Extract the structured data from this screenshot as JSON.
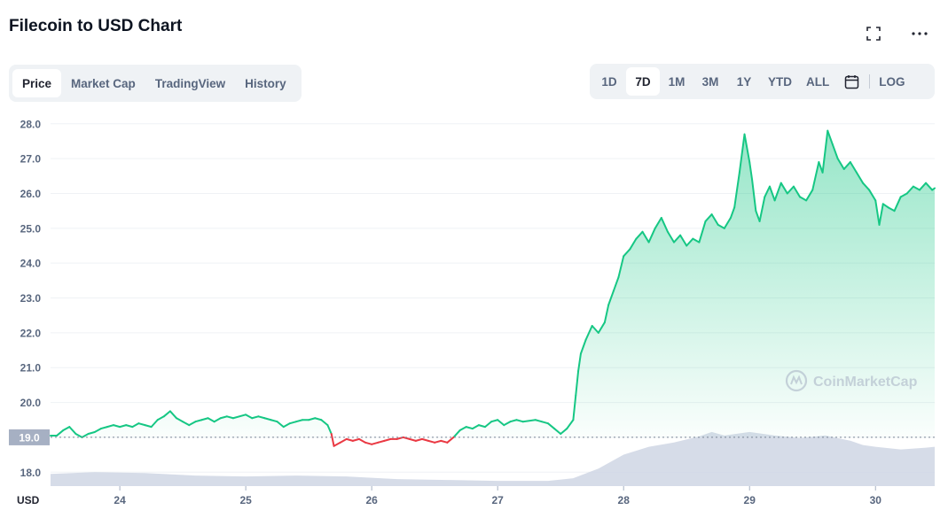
{
  "header": {
    "title": "Filecoin to USD Chart",
    "fullscreen_icon": "fullscreen-icon",
    "more_icon": "more-options-icon"
  },
  "view_tabs": [
    {
      "label": "Price",
      "active": true
    },
    {
      "label": "Market Cap",
      "active": false
    },
    {
      "label": "TradingView",
      "active": false
    },
    {
      "label": "History",
      "active": false
    }
  ],
  "range_tabs": [
    {
      "label": "1D",
      "active": false
    },
    {
      "label": "7D",
      "active": true
    },
    {
      "label": "1M",
      "active": false
    },
    {
      "label": "3M",
      "active": false
    },
    {
      "label": "1Y",
      "active": false
    },
    {
      "label": "YTD",
      "active": false
    },
    {
      "label": "ALL",
      "active": false
    }
  ],
  "calendar_icon": "calendar-icon",
  "log_label": "LOG",
  "colors": {
    "up": "#16c784",
    "down": "#ea3943",
    "volume": "#cfd6e4",
    "grid": "#eff2f5",
    "axis_text": "#58667e",
    "baseline_badge": "#a6b0c3"
  },
  "chart_data": {
    "type": "line",
    "currency_label": "USD",
    "watermark": "CoinMarketCap",
    "y_ticks": [
      18.0,
      19.0,
      20.0,
      21.0,
      22.0,
      23.0,
      24.0,
      25.0,
      26.0,
      27.0,
      28.0
    ],
    "ylim": [
      17.6,
      28.3
    ],
    "x_ticks": [
      "24",
      "25",
      "26",
      "27",
      "28",
      "29",
      "30"
    ],
    "x_tick_values": [
      24,
      25,
      26,
      27,
      28,
      29,
      30
    ],
    "xlim": [
      23.45,
      30.47
    ],
    "baseline": 19.0,
    "series": [
      {
        "values": [
          [
            23.45,
            19.05
          ],
          [
            23.5,
            19.05
          ],
          [
            23.55,
            19.2
          ],
          [
            23.6,
            19.3
          ],
          [
            23.65,
            19.1
          ],
          [
            23.7,
            19.0
          ],
          [
            23.75,
            19.1
          ],
          [
            23.8,
            19.15
          ],
          [
            23.85,
            19.25
          ],
          [
            23.9,
            19.3
          ],
          [
            23.95,
            19.35
          ],
          [
            24.0,
            19.3
          ],
          [
            24.05,
            19.35
          ],
          [
            24.1,
            19.3
          ],
          [
            24.15,
            19.4
          ],
          [
            24.2,
            19.35
          ],
          [
            24.25,
            19.3
          ],
          [
            24.3,
            19.5
          ],
          [
            24.35,
            19.6
          ],
          [
            24.4,
            19.75
          ],
          [
            24.45,
            19.55
          ],
          [
            24.5,
            19.45
          ],
          [
            24.55,
            19.35
          ],
          [
            24.6,
            19.45
          ],
          [
            24.65,
            19.5
          ],
          [
            24.7,
            19.55
          ],
          [
            24.75,
            19.45
          ],
          [
            24.8,
            19.55
          ],
          [
            24.85,
            19.6
          ],
          [
            24.9,
            19.55
          ],
          [
            25.0,
            19.65
          ],
          [
            25.05,
            19.55
          ],
          [
            25.1,
            19.6
          ],
          [
            25.15,
            19.55
          ],
          [
            25.2,
            19.5
          ],
          [
            25.25,
            19.45
          ],
          [
            25.3,
            19.3
          ],
          [
            25.35,
            19.4
          ],
          [
            25.4,
            19.45
          ],
          [
            25.45,
            19.5
          ],
          [
            25.5,
            19.5
          ],
          [
            25.55,
            19.55
          ],
          [
            25.6,
            19.5
          ],
          [
            25.65,
            19.35
          ],
          [
            25.68,
            19.1
          ],
          [
            25.7,
            18.75
          ],
          [
            25.75,
            18.85
          ],
          [
            25.8,
            18.95
          ],
          [
            25.85,
            18.9
          ],
          [
            25.9,
            18.95
          ],
          [
            25.95,
            18.85
          ],
          [
            26.0,
            18.8
          ],
          [
            26.05,
            18.85
          ],
          [
            26.1,
            18.9
          ],
          [
            26.15,
            18.95
          ],
          [
            26.2,
            18.95
          ],
          [
            26.25,
            19.0
          ],
          [
            26.3,
            18.95
          ],
          [
            26.35,
            18.9
          ],
          [
            26.4,
            18.95
          ],
          [
            26.45,
            18.9
          ],
          [
            26.5,
            18.85
          ],
          [
            26.55,
            18.9
          ],
          [
            26.6,
            18.85
          ],
          [
            26.65,
            19.0
          ],
          [
            26.7,
            19.2
          ],
          [
            26.75,
            19.3
          ],
          [
            26.8,
            19.25
          ],
          [
            26.85,
            19.35
          ],
          [
            26.9,
            19.3
          ],
          [
            26.95,
            19.45
          ],
          [
            27.0,
            19.5
          ],
          [
            27.05,
            19.35
          ],
          [
            27.1,
            19.45
          ],
          [
            27.15,
            19.5
          ],
          [
            27.2,
            19.45
          ],
          [
            27.3,
            19.5
          ],
          [
            27.35,
            19.45
          ],
          [
            27.4,
            19.4
          ],
          [
            27.45,
            19.25
          ],
          [
            27.5,
            19.1
          ],
          [
            27.55,
            19.25
          ],
          [
            27.6,
            19.5
          ],
          [
            27.62,
            20.2
          ],
          [
            27.64,
            20.9
          ],
          [
            27.66,
            21.4
          ],
          [
            27.7,
            21.8
          ],
          [
            27.75,
            22.2
          ],
          [
            27.8,
            22.0
          ],
          [
            27.85,
            22.3
          ],
          [
            27.88,
            22.8
          ],
          [
            27.92,
            23.2
          ],
          [
            27.96,
            23.6
          ],
          [
            28.0,
            24.2
          ],
          [
            28.05,
            24.4
          ],
          [
            28.1,
            24.7
          ],
          [
            28.15,
            24.9
          ],
          [
            28.2,
            24.6
          ],
          [
            28.25,
            25.0
          ],
          [
            28.3,
            25.3
          ],
          [
            28.35,
            24.9
          ],
          [
            28.4,
            24.6
          ],
          [
            28.45,
            24.8
          ],
          [
            28.5,
            24.5
          ],
          [
            28.55,
            24.7
          ],
          [
            28.6,
            24.6
          ],
          [
            28.65,
            25.2
          ],
          [
            28.7,
            25.4
          ],
          [
            28.75,
            25.1
          ],
          [
            28.8,
            25.0
          ],
          [
            28.85,
            25.3
          ],
          [
            28.88,
            25.6
          ],
          [
            28.92,
            26.6
          ],
          [
            28.96,
            27.7
          ],
          [
            29.0,
            26.9
          ],
          [
            29.02,
            26.4
          ],
          [
            29.05,
            25.5
          ],
          [
            29.08,
            25.2
          ],
          [
            29.12,
            25.9
          ],
          [
            29.16,
            26.2
          ],
          [
            29.2,
            25.8
          ],
          [
            29.25,
            26.3
          ],
          [
            29.3,
            26.0
          ],
          [
            29.35,
            26.2
          ],
          [
            29.4,
            25.9
          ],
          [
            29.45,
            25.8
          ],
          [
            29.5,
            26.1
          ],
          [
            29.55,
            26.9
          ],
          [
            29.58,
            26.6
          ],
          [
            29.62,
            27.8
          ],
          [
            29.66,
            27.4
          ],
          [
            29.7,
            27.0
          ],
          [
            29.75,
            26.7
          ],
          [
            29.8,
            26.9
          ],
          [
            29.85,
            26.6
          ],
          [
            29.9,
            26.3
          ],
          [
            29.95,
            26.1
          ],
          [
            30.0,
            25.8
          ],
          [
            30.03,
            25.1
          ],
          [
            30.06,
            25.7
          ],
          [
            30.1,
            25.6
          ],
          [
            30.15,
            25.5
          ],
          [
            30.2,
            25.9
          ],
          [
            30.25,
            26.0
          ],
          [
            30.3,
            26.2
          ],
          [
            30.35,
            26.1
          ],
          [
            30.4,
            26.3
          ],
          [
            30.45,
            26.1
          ],
          [
            30.47,
            26.15
          ]
        ]
      }
    ],
    "volume": [
      [
        23.45,
        0.14
      ],
      [
        23.8,
        0.16
      ],
      [
        24.2,
        0.15
      ],
      [
        24.6,
        0.12
      ],
      [
        25.0,
        0.11
      ],
      [
        25.4,
        0.12
      ],
      [
        25.8,
        0.11
      ],
      [
        26.2,
        0.08
      ],
      [
        26.6,
        0.07
      ],
      [
        27.0,
        0.06
      ],
      [
        27.4,
        0.06
      ],
      [
        27.6,
        0.09
      ],
      [
        27.8,
        0.2
      ],
      [
        28.0,
        0.36
      ],
      [
        28.2,
        0.45
      ],
      [
        28.4,
        0.5
      ],
      [
        28.6,
        0.57
      ],
      [
        28.7,
        0.62
      ],
      [
        28.8,
        0.58
      ],
      [
        28.9,
        0.6
      ],
      [
        29.0,
        0.62
      ],
      [
        29.2,
        0.58
      ],
      [
        29.4,
        0.55
      ],
      [
        29.6,
        0.58
      ],
      [
        29.8,
        0.52
      ],
      [
        29.9,
        0.47
      ],
      [
        30.0,
        0.45
      ],
      [
        30.2,
        0.42
      ],
      [
        30.4,
        0.44
      ],
      [
        30.47,
        0.45
      ]
    ]
  }
}
